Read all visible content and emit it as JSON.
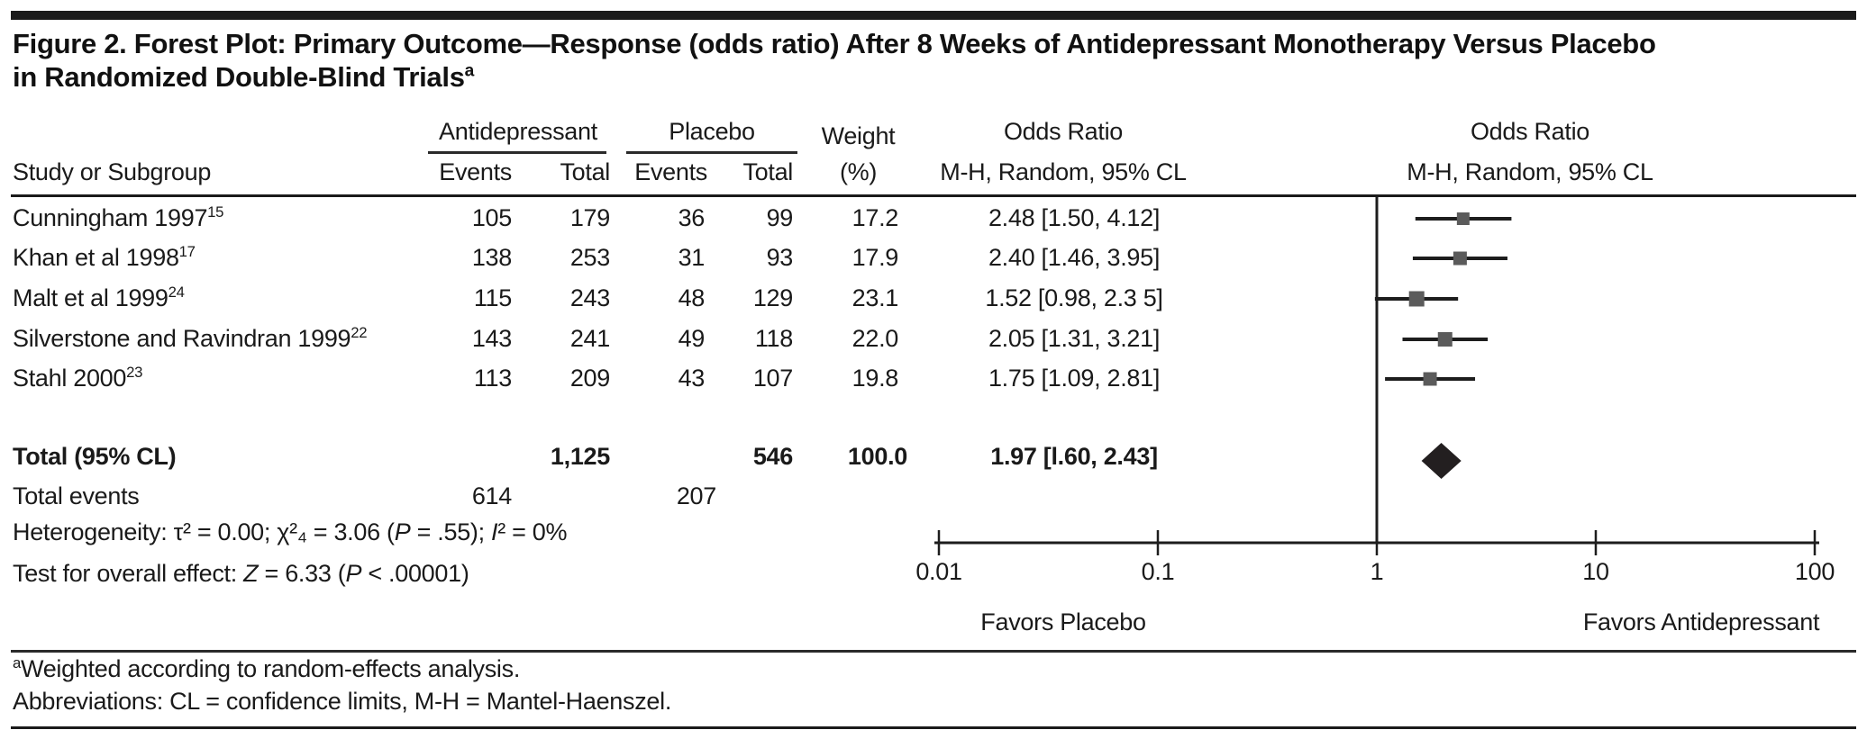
{
  "figure": {
    "title_line1": "Figure 2. Forest Plot: Primary Outcome—Response (odds ratio) After 8 Weeks of Antidepressant Monotherapy Versus Placebo",
    "title_line2": "in Randomized Double-Blind Trials",
    "title_superscript": "a"
  },
  "table": {
    "headers": {
      "study": "Study or Subgroup",
      "group1": "Antidepressant",
      "group2": "Placebo",
      "events1": "Events",
      "total1": "Total",
      "events2": "Events",
      "total2": "Total",
      "weight_line1": "Weight",
      "weight_line2": "(%)",
      "or_line1": "Odds Ratio",
      "or_line2": "M-H, Random, 95% CL",
      "plot_line1": "Odds Ratio",
      "plot_line2": "M-H, Random, 95% CL"
    },
    "rows": [
      {
        "study": "Cunningham 1997",
        "ref": "15",
        "events1": "105",
        "total1": "179",
        "events2": "36",
        "total2": "99",
        "weight": "17.2",
        "or_text": "2.48 [1.50, 4.12]"
      },
      {
        "study": "Khan et al 1998",
        "ref": "17",
        "events1": "138",
        "total1": "253",
        "events2": "31",
        "total2": "93",
        "weight": "17.9",
        "or_text": "2.40 [1.46, 3.95]"
      },
      {
        "study": "Malt et al 1999",
        "ref": "24",
        "events1": "115",
        "total1": "243",
        "events2": "48",
        "total2": "129",
        "weight": "23.1",
        "or_text": "1.52 [0.98, 2.3 5]"
      },
      {
        "study": "Silverstone and Ravindran 1999",
        "ref": "22",
        "events1": "143",
        "total1": "241",
        "events2": "49",
        "total2": "118",
        "weight": "22.0",
        "or_text": "2.05 [1.31, 3.21]"
      },
      {
        "study": "Stahl 2000",
        "ref": "23",
        "events1": "113",
        "total1": "209",
        "events2": "43",
        "total2": "107",
        "weight": "19.8",
        "or_text": "1.75 [1.09, 2.81]"
      }
    ],
    "total_row": {
      "label": "Total (95% CL)",
      "total1": "1,125",
      "total2": "546",
      "weight": "100.0",
      "or_text": "1.97 [l.60, 2.43]"
    },
    "total_events": {
      "label": "Total events",
      "events1": "614",
      "events2": "207"
    }
  },
  "stats": {
    "het_prefix": "Heterogeneity: τ² = 0.00; χ²₄ = 3.06 (",
    "het_p": "P",
    "het_mid": " = .55); ",
    "het_i": "I",
    "het_suffix": "² = 0%",
    "oe_prefix": "Test for overall effect: ",
    "oe_z": "Z",
    "oe_mid": " = 6.33 (",
    "oe_p": "P",
    "oe_suffix": " < .00001)"
  },
  "axis": {
    "ticks": [
      "0.01",
      "0.1",
      "1",
      "10",
      "100"
    ],
    "left_label": "Favors Placebo",
    "right_label": "Favors Antidepressant"
  },
  "footnotes": {
    "a_sup": "a",
    "a_text": "Weighted according to random-effects analysis.",
    "abbrev": "Abbreviations: CL = confidence limits, M-H = Mantel-Haenszel."
  },
  "chart_data": {
    "type": "forest",
    "x_scale": "log10",
    "xlim": [
      0.01,
      100
    ],
    "x_ticks": [
      0.01,
      0.1,
      1,
      10,
      100
    ],
    "no_effect_line": 1,
    "favors_left": "Favors Placebo",
    "favors_right": "Favors Antidepressant",
    "studies": [
      {
        "name": "Cunningham 1997",
        "or": 2.48,
        "ci": [
          1.5,
          4.12
        ],
        "weight_pct": 17.2
      },
      {
        "name": "Khan et al 1998",
        "or": 2.4,
        "ci": [
          1.46,
          3.95
        ],
        "weight_pct": 17.9
      },
      {
        "name": "Malt et al 1999",
        "or": 1.52,
        "ci": [
          0.98,
          2.35
        ],
        "weight_pct": 23.1
      },
      {
        "name": "Silverstone and Ravindran 1999",
        "or": 2.05,
        "ci": [
          1.31,
          3.21
        ],
        "weight_pct": 22.0
      },
      {
        "name": "Stahl 2000",
        "or": 1.75,
        "ci": [
          1.09,
          2.81
        ],
        "weight_pct": 19.8
      }
    ],
    "total": {
      "or": 1.97,
      "ci": [
        1.6,
        2.43
      ],
      "weight_pct": 100.0
    },
    "colors": {
      "square": "#5b5b5b",
      "line": "#1d1d1d",
      "diamond": "#231f20"
    }
  }
}
